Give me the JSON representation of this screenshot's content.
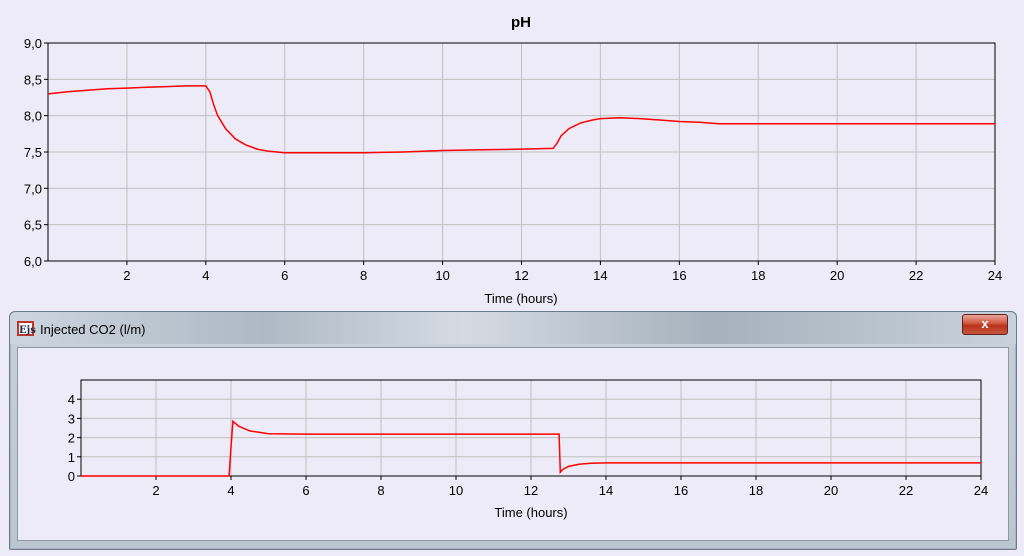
{
  "top_chart": {
    "title": "pH",
    "xlabel": "Time (hours)",
    "x_ticks": [
      "2",
      "4",
      "6",
      "8",
      "10",
      "12",
      "14",
      "16",
      "18",
      "20",
      "22",
      "24"
    ],
    "y_ticks": [
      "6,0",
      "6,5",
      "7,0",
      "7,5",
      "8,0",
      "8,5",
      "9,0"
    ]
  },
  "window": {
    "title": "Injected CO2 (l/m)",
    "icon_text": "Ejs",
    "close_label": "x"
  },
  "bottom_chart": {
    "xlabel": "Time (hours)",
    "x_ticks": [
      "2",
      "4",
      "6",
      "8",
      "10",
      "12",
      "14",
      "16",
      "18",
      "20",
      "22",
      "24"
    ],
    "y_ticks": [
      "0",
      "1",
      "2",
      "3",
      "4"
    ]
  },
  "colors": {
    "series": "#ff0000",
    "grid": "#c0c0c0",
    "background": "#ecebf7"
  },
  "chart_data": [
    {
      "type": "line",
      "title": "pH",
      "xlabel": "Time (hours)",
      "ylabel": "",
      "xlim": [
        0,
        24
      ],
      "ylim": [
        6.0,
        9.0
      ],
      "grid": true,
      "series": [
        {
          "x": [
            0,
            0.5,
            1,
            1.5,
            2,
            2.5,
            3,
            3.5,
            4.0,
            4.1,
            4.2,
            4.3,
            4.5,
            4.75,
            5.0,
            5.3,
            5.6,
            6.0,
            7,
            8,
            9,
            10,
            11,
            12,
            12.8,
            12.9,
            13.0,
            13.2,
            13.5,
            13.8,
            14.0,
            14.5,
            15.0,
            15.5,
            16,
            16.5,
            17,
            18,
            20,
            22,
            24
          ],
          "y": [
            8.3,
            8.33,
            8.35,
            8.37,
            8.38,
            8.39,
            8.4,
            8.41,
            8.41,
            8.33,
            8.15,
            8.0,
            7.82,
            7.68,
            7.6,
            7.54,
            7.51,
            7.49,
            7.49,
            7.49,
            7.5,
            7.52,
            7.53,
            7.54,
            7.55,
            7.62,
            7.72,
            7.82,
            7.9,
            7.94,
            7.96,
            7.97,
            7.96,
            7.94,
            7.92,
            7.91,
            7.89,
            7.89,
            7.89,
            7.89,
            7.89
          ]
        }
      ]
    },
    {
      "type": "line",
      "title": "Injected CO2 (l/m)",
      "xlabel": "Time (hours)",
      "ylabel": "",
      "xlim": [
        0,
        24
      ],
      "ylim": [
        0,
        5
      ],
      "grid": true,
      "series": [
        {
          "x": [
            0,
            3.95,
            4.0,
            4.05,
            4.2,
            4.5,
            5.0,
            6,
            8,
            10,
            12,
            12.75,
            12.78,
            12.85,
            13.0,
            13.3,
            13.6,
            14,
            16,
            18,
            20,
            22,
            24
          ],
          "y": [
            0,
            0,
            1.5,
            2.85,
            2.6,
            2.35,
            2.2,
            2.18,
            2.18,
            2.18,
            2.18,
            2.18,
            0.2,
            0.35,
            0.5,
            0.62,
            0.66,
            0.68,
            0.68,
            0.68,
            0.68,
            0.68,
            0.68
          ]
        }
      ]
    }
  ]
}
